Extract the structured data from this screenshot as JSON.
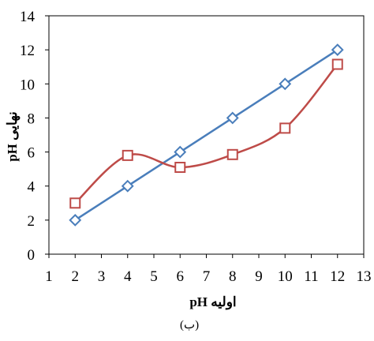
{
  "chart_data": {
    "type": "line",
    "xlabel": "اولیه pH",
    "ylabel": "نهایی pH",
    "caption": "(ب)",
    "xlim": [
      1,
      13
    ],
    "ylim": [
      0,
      14
    ],
    "x_ticks": [
      1,
      2,
      3,
      4,
      5,
      6,
      7,
      8,
      9,
      10,
      11,
      12,
      13
    ],
    "y_ticks": [
      0,
      2,
      4,
      6,
      8,
      10,
      12,
      14
    ],
    "grid": false,
    "legend": "none",
    "series": [
      {
        "marker": "diamond",
        "smooth": false,
        "color": "#4a7ebb",
        "x": [
          2,
          4,
          6,
          8,
          10,
          12
        ],
        "y": [
          2.0,
          4.0,
          6.0,
          8.0,
          10.0,
          12.0
        ]
      },
      {
        "marker": "square",
        "smooth": true,
        "color": "#be4b48",
        "x": [
          2,
          4,
          6,
          8,
          10,
          12
        ],
        "y": [
          3.0,
          5.8,
          5.1,
          5.85,
          7.4,
          11.15
        ]
      }
    ]
  }
}
